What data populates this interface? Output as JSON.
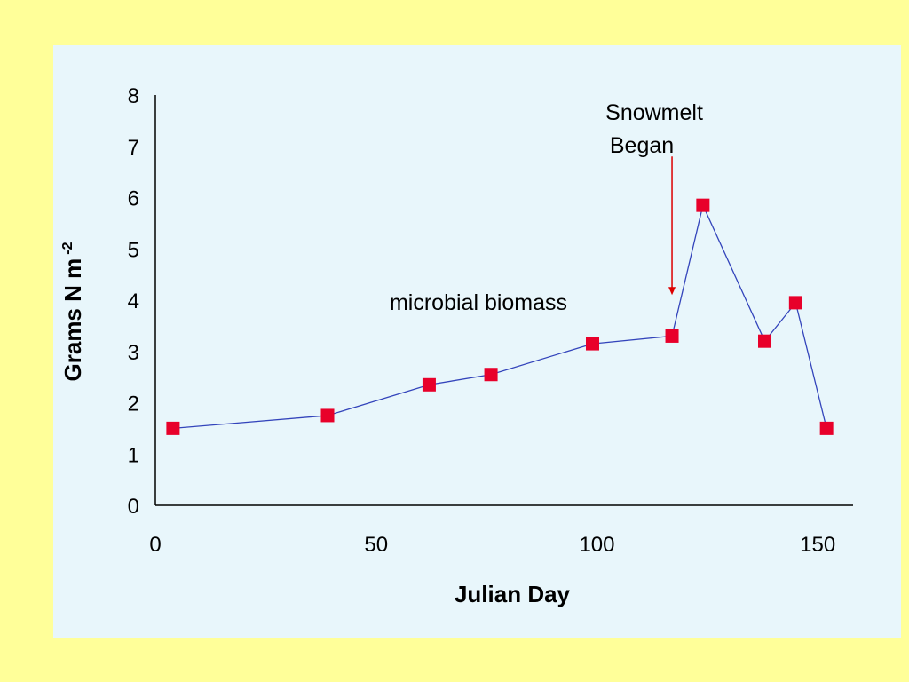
{
  "colors": {
    "slide_background": "#ffff99",
    "plot_background": "#e8f6fb",
    "series_line": "#3344bb",
    "series_marker": "#e8002a",
    "arrow": "#dd0000"
  },
  "chart_data": {
    "type": "line",
    "xlabel": "Julian Day",
    "ylabel": "Grams N m",
    "ylabel_superscript": "-2",
    "xlim": [
      0,
      158
    ],
    "ylim": [
      0,
      8
    ],
    "x_ticks": [
      0,
      50,
      100,
      150
    ],
    "y_ticks": [
      0,
      1,
      2,
      3,
      4,
      5,
      6,
      7,
      8
    ],
    "grid": false,
    "series": [
      {
        "name": "microbial biomass",
        "points": [
          {
            "x": 4,
            "y": 1.5
          },
          {
            "x": 39,
            "y": 1.75
          },
          {
            "x": 62,
            "y": 2.35
          },
          {
            "x": 76,
            "y": 2.55
          },
          {
            "x": 99,
            "y": 3.15
          },
          {
            "x": 117,
            "y": 3.3
          },
          {
            "x": 124,
            "y": 5.85
          },
          {
            "x": 138,
            "y": 3.2
          },
          {
            "x": 145,
            "y": 3.95
          },
          {
            "x": 152,
            "y": 1.5
          }
        ]
      }
    ],
    "annotations": [
      {
        "text_line1": "Snowmelt",
        "text_line2": "Began",
        "x": 117,
        "y_from": 6.8,
        "y_to": 4.1
      }
    ]
  }
}
